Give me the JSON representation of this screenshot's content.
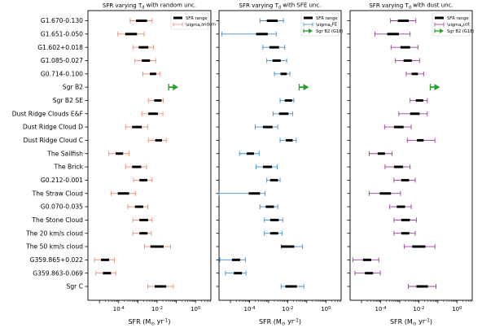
{
  "chart_data": [
    {
      "type": "errorbar-range",
      "title": "SFR varying T$_\\mathrm{d}$ with random unc.",
      "xlabel": "SFR (M$_\\odot$ yr$^{-1}$)",
      "xscale": "log",
      "xlim_exp": [
        -5.6,
        0.8
      ],
      "xticks": [
        "10$^{-4}$",
        "10$^{-2}$",
        "10$^{0}$"
      ],
      "xtick_exps": [
        -4,
        -2,
        0
      ],
      "legend": {
        "position": "upper right",
        "entries": [
          "SFR range",
          "$\\sigma_\\mathrm{random}$"
        ]
      },
      "colors": {
        "range": "#000000",
        "err": "#f08a70"
      },
      "rows": [
        {
          "name": "G1.670-0.130",
          "lo": 0.0008,
          "hi": 0.003,
          "elo": 0.0004,
          "ehi": 0.0055
        },
        {
          "name": "G1.651-0.050",
          "lo": 0.00022,
          "hi": 0.0009,
          "elo": 9e-05,
          "ehi": 0.0021
        },
        {
          "name": "G1.602+0.018",
          "lo": 0.0011,
          "hi": 0.0035,
          "elo": 0.00055,
          "ehi": 0.0065
        },
        {
          "name": "G1.085-0.027",
          "lo": 0.0016,
          "hi": 0.0043,
          "elo": 0.0007,
          "ehi": 0.0085
        },
        {
          "name": "G0.714-0.100",
          "lo": 0.0042,
          "hi": 0.009,
          "elo": 0.0018,
          "ehi": 0.014
        },
        {
          "name": "Sgr B2",
          "lower_limit": 0.04,
          "arrow_color": "#2ca02c"
        },
        {
          "name": "Sgr B2 SE",
          "lo": 0.007,
          "hi": 0.017,
          "elo": 0.0035,
          "ehi": 0.021
        },
        {
          "name": "Dust Ridge Clouds E&F",
          "lo": 0.0035,
          "hi": 0.011,
          "elo": 0.0016,
          "ehi": 0.02
        },
        {
          "name": "Dust Ridge Cloud D",
          "lo": 0.0005,
          "hi": 0.0016,
          "elo": 0.00023,
          "ehi": 0.0032
        },
        {
          "name": "Dust Ridge Cloud C",
          "lo": 0.008,
          "hi": 0.018,
          "elo": 0.0035,
          "ehi": 0.03
        },
        {
          "name": "The Sailfish",
          "lo": 7e-05,
          "hi": 0.00017,
          "elo": 3e-05,
          "ehi": 0.00035
        },
        {
          "name": "The Brick",
          "lo": 0.0005,
          "hi": 0.0015,
          "elo": 0.00023,
          "ehi": 0.0028
        },
        {
          "name": "G0.212-0.001",
          "lo": 0.0012,
          "hi": 0.0031,
          "elo": 0.0006,
          "ehi": 0.0055
        },
        {
          "name": "The Straw Cloud",
          "lo": 9e-05,
          "hi": 0.00035,
          "elo": 4e-05,
          "ehi": 0.00075
        },
        {
          "name": "G0.070-0.035",
          "lo": 0.0007,
          "hi": 0.0019,
          "elo": 0.0003,
          "ehi": 0.0033
        },
        {
          "name": "The Stone Cloud",
          "lo": 0.0012,
          "hi": 0.0034,
          "elo": 0.00055,
          "ehi": 0.0055
        },
        {
          "name": "The 20 km/s cloud",
          "lo": 0.0012,
          "hi": 0.0032,
          "elo": 0.00055,
          "ehi": 0.005
        },
        {
          "name": "The 50 km/s cloud",
          "lo": 0.0045,
          "hi": 0.022,
          "elo": 0.0022,
          "ehi": 0.05
        },
        {
          "name": "G359.865+0.022",
          "lo": 1.2e-05,
          "hi": 3.2e-05,
          "elo": 5.5e-06,
          "ehi": 6e-05
        },
        {
          "name": "G359.863-0.069",
          "lo": 1.5e-05,
          "hi": 4e-05,
          "elo": 6.5e-06,
          "ehi": 7e-05
        },
        {
          "name": "Sgr C",
          "lo": 0.0075,
          "hi": 0.03,
          "elo": 0.0033,
          "ehi": 0.07
        }
      ]
    },
    {
      "type": "errorbar-range",
      "title": "SFR varying T$_\\mathrm{d}$ with SFE unc.",
      "xlabel": "SFR (M$_\\odot$ yr$^{-1}$)",
      "xscale": "log",
      "xlim_exp": [
        -5.6,
        0.8
      ],
      "xticks": [
        "10$^{-4}$",
        "10$^{-2}$",
        "10$^{0}$"
      ],
      "xtick_exps": [
        -4,
        -2,
        0
      ],
      "legend": {
        "position": "upper right",
        "entries": [
          "SFR range",
          "$\\sigma_\\mathrm{SFE}$",
          "Sgr B2 (G18)"
        ]
      },
      "colors": {
        "range": "#000000",
        "err": "#3a8fd0"
      },
      "rows": [
        {
          "name": "G1.670-0.130",
          "lo": 0.0008,
          "hi": 0.003,
          "elo": 0.00035,
          "ehi": 0.006
        },
        {
          "name": "G1.651-0.050",
          "lo": 0.00022,
          "hi": 0.0009,
          "elo": 3.5e-06,
          "ehi": 0.0025
        },
        {
          "name": "G1.602+0.018",
          "lo": 0.0011,
          "hi": 0.0035,
          "elo": 0.0005,
          "ehi": 0.007
        },
        {
          "name": "G1.085-0.027",
          "lo": 0.0016,
          "hi": 0.0043,
          "elo": 0.0008,
          "ehi": 0.0088
        },
        {
          "name": "G0.714-0.100",
          "lo": 0.0042,
          "hi": 0.009,
          "elo": 0.002,
          "ehi": 0.013
        },
        {
          "name": "Sgr B2",
          "lower_limit": 0.04,
          "arrow_color": "#2ca02c"
        },
        {
          "name": "Sgr B2 SE",
          "lo": 0.007,
          "hi": 0.017,
          "elo": 0.004,
          "ehi": 0.021
        },
        {
          "name": "Dust Ridge Clouds E&F",
          "lo": 0.0035,
          "hi": 0.011,
          "elo": 0.0017,
          "ehi": 0.018
        },
        {
          "name": "Dust Ridge Cloud D",
          "lo": 0.0005,
          "hi": 0.0016,
          "elo": 0.0002,
          "ehi": 0.003
        },
        {
          "name": "Dust Ridge Cloud C",
          "lo": 0.008,
          "hi": 0.018,
          "elo": 0.004,
          "ehi": 0.028
        },
        {
          "name": "The Sailfish",
          "lo": 7e-05,
          "hi": 0.00017,
          "elo": 3e-05,
          "ehi": 0.00032
        },
        {
          "name": "The Brick",
          "lo": 0.0005,
          "hi": 0.0015,
          "elo": 0.00022,
          "ehi": 0.0028
        },
        {
          "name": "G0.212-0.001",
          "lo": 0.0012,
          "hi": 0.0031,
          "elo": 0.0008,
          "ehi": 0.004
        },
        {
          "name": "The Straw Cloud",
          "lo": 9e-05,
          "hi": 0.00035,
          "elo": 2.5e-06,
          "ehi": 0.00065
        },
        {
          "name": "G0.070-0.035",
          "lo": 0.0007,
          "hi": 0.0019,
          "elo": 0.00035,
          "ehi": 0.003
        },
        {
          "name": "The Stone Cloud",
          "lo": 0.0012,
          "hi": 0.0034,
          "elo": 0.0006,
          "ehi": 0.0055
        },
        {
          "name": "The 20 km/s cloud",
          "lo": 0.0012,
          "hi": 0.0032,
          "elo": 0.0006,
          "ehi": 0.005
        },
        {
          "name": "The 50 km/s cloud",
          "lo": 0.0045,
          "hi": 0.022,
          "elo": 0.0045,
          "ehi": 0.06
        },
        {
          "name": "G359.865+0.022",
          "lo": 1.2e-05,
          "hi": 3.2e-05,
          "elo": 2.8e-06,
          "ehi": 6e-05
        },
        {
          "name": "G359.863-0.069",
          "lo": 1.5e-05,
          "hi": 4e-05,
          "elo": 5.5e-06,
          "ehi": 6.5e-05
        },
        {
          "name": "Sgr C",
          "lo": 0.0075,
          "hi": 0.03,
          "elo": 0.0045,
          "ehi": 0.07
        }
      ]
    },
    {
      "type": "errorbar-range",
      "title": "SFR varying T$_\\mathrm{d}$ with dust unc.",
      "xlabel": "SFR (M$_\\odot$ yr$^{-1}$)",
      "xscale": "log",
      "xlim_exp": [
        -5.6,
        0.8
      ],
      "xticks": [
        "10$^{-4}$",
        "10$^{-2}$",
        "10$^{0}$"
      ],
      "xtick_exps": [
        -4,
        -2,
        0
      ],
      "legend": {
        "position": "upper right",
        "entries": [
          "SFR range",
          "$\\sigma_\\mathrm{dust}$",
          "Sgr B2 (G18)"
        ]
      },
      "colors": {
        "range": "#000000",
        "err": "#9b3a9b"
      },
      "rows": [
        {
          "name": "G1.670-0.130",
          "lo": 0.0008,
          "hi": 0.003,
          "elo": 0.00033,
          "ehi": 0.007
        },
        {
          "name": "G1.651-0.050",
          "lo": 0.00022,
          "hi": 0.0009,
          "elo": 5e-05,
          "ehi": 0.0035
        },
        {
          "name": "G1.602+0.018",
          "lo": 0.0011,
          "hi": 0.0035,
          "elo": 0.00035,
          "ehi": 0.009
        },
        {
          "name": "G1.085-0.027",
          "lo": 0.0016,
          "hi": 0.0043,
          "elo": 0.0006,
          "ehi": 0.011
        },
        {
          "name": "G0.714-0.100",
          "lo": 0.0042,
          "hi": 0.009,
          "elo": 0.0022,
          "ehi": 0.018
        },
        {
          "name": "Sgr B2",
          "lower_limit": 0.04,
          "arrow_color": "#2ca02c"
        },
        {
          "name": "Sgr B2 SE",
          "lo": 0.007,
          "hi": 0.017,
          "elo": 0.0035,
          "ehi": 0.028
        },
        {
          "name": "Dust Ridge Clouds E&F",
          "lo": 0.0035,
          "hi": 0.011,
          "elo": 0.0009,
          "ehi": 0.028
        },
        {
          "name": "Dust Ridge Cloud D",
          "lo": 0.0005,
          "hi": 0.0016,
          "elo": 0.00016,
          "ehi": 0.004
        },
        {
          "name": "Dust Ridge Cloud C",
          "lo": 0.008,
          "hi": 0.018,
          "elo": 0.0025,
          "ehi": 0.07
        },
        {
          "name": "The Sailfish",
          "lo": 7e-05,
          "hi": 0.00017,
          "elo": 2.5e-05,
          "ehi": 0.0004
        },
        {
          "name": "The Brick",
          "lo": 0.0005,
          "hi": 0.0015,
          "elo": 0.00017,
          "ehi": 0.0035
        },
        {
          "name": "G0.212-0.001",
          "lo": 0.0012,
          "hi": 0.0031,
          "elo": 0.0005,
          "ehi": 0.0065
        },
        {
          "name": "The Straw Cloud",
          "lo": 9e-05,
          "hi": 0.00035,
          "elo": 2.5e-05,
          "ehi": 0.0011
        },
        {
          "name": "G0.070-0.035",
          "lo": 0.0007,
          "hi": 0.0019,
          "elo": 0.0003,
          "ehi": 0.004
        },
        {
          "name": "The Stone Cloud",
          "lo": 0.0012,
          "hi": 0.0034,
          "elo": 0.0005,
          "ehi": 0.0075
        },
        {
          "name": "The 20 km/s cloud",
          "lo": 0.0012,
          "hi": 0.0032,
          "elo": 0.0005,
          "ehi": 0.0065
        },
        {
          "name": "The 50 km/s cloud",
          "lo": 0.0045,
          "hi": 0.022,
          "elo": 0.0017,
          "ehi": 0.07
        },
        {
          "name": "G359.865+0.022",
          "lo": 1.2e-05,
          "hi": 3.2e-05,
          "elo": 3.5e-06,
          "ehi": 8e-05
        },
        {
          "name": "G359.863-0.069",
          "lo": 1.5e-05,
          "hi": 4e-05,
          "elo": 4.5e-06,
          "ehi": 9.5e-05
        },
        {
          "name": "Sgr C",
          "lo": 0.0075,
          "hi": 0.03,
          "elo": 0.0028,
          "ehi": 0.08
        }
      ]
    }
  ]
}
